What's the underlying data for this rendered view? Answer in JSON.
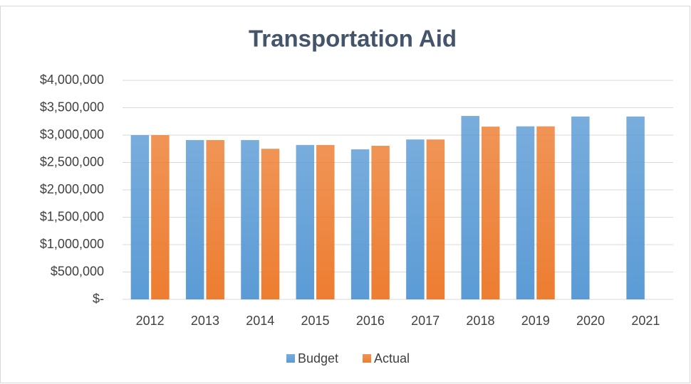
{
  "chart_data": {
    "type": "bar",
    "title": "Transportation Aid",
    "categories": [
      "2012",
      "2013",
      "2014",
      "2015",
      "2016",
      "2017",
      "2018",
      "2019",
      "2020",
      "2021"
    ],
    "series": [
      {
        "name": "Budget",
        "color": "#5b9bd5",
        "values": [
          3000000,
          2910000,
          2910000,
          2820000,
          2740000,
          2920000,
          3350000,
          3160000,
          3340000,
          3340000
        ]
      },
      {
        "name": "Actual",
        "color": "#ed7d31",
        "values": [
          3000000,
          2910000,
          2750000,
          2820000,
          2805000,
          2920000,
          3155000,
          3160000,
          null,
          null
        ]
      }
    ],
    "ylim": [
      0,
      4000000
    ],
    "yticks": [
      {
        "value": 0,
        "label": "$-"
      },
      {
        "value": 500000,
        "label": "$500,000"
      },
      {
        "value": 1000000,
        "label": "$1,000,000"
      },
      {
        "value": 1500000,
        "label": "$1,500,000"
      },
      {
        "value": 2000000,
        "label": "$2,000,000"
      },
      {
        "value": 2500000,
        "label": "$2,500,000"
      },
      {
        "value": 3000000,
        "label": "$3,000,000"
      },
      {
        "value": 3500000,
        "label": "$3,500,000"
      },
      {
        "value": 4000000,
        "label": "$4,000,000"
      }
    ],
    "grid": true,
    "legend": "bottom"
  }
}
